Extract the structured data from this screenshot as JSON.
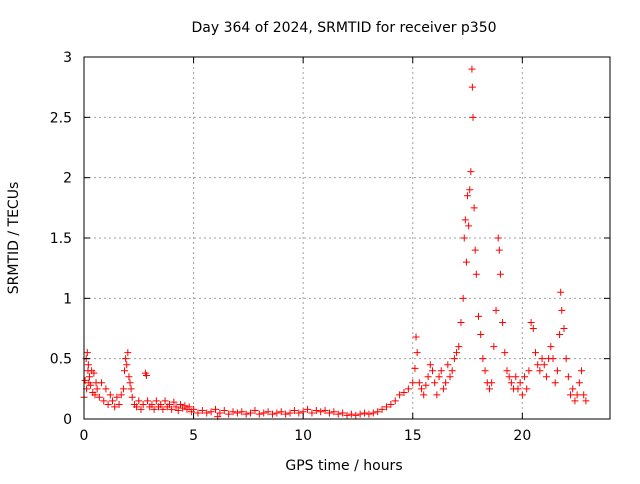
{
  "chart_data": {
    "type": "scatter",
    "title": "Day 364 of 2024, SRMTID for receiver p350",
    "xlabel": "GPS time / hours",
    "ylabel": "SRMTID / TECUs",
    "xlim": [
      0,
      24
    ],
    "ylim": [
      0,
      3
    ],
    "x_ticks": [
      0,
      5,
      10,
      15,
      20
    ],
    "x_tick_labels": [
      "0",
      "5",
      "10",
      "15",
      "20"
    ],
    "y_ticks": [
      0,
      0.5,
      1,
      1.5,
      2,
      2.5,
      3
    ],
    "y_tick_labels": [
      "0",
      "0.5",
      "1",
      "1.5",
      "2",
      "2.5",
      "3"
    ],
    "grid": true,
    "marker": "+",
    "series": [
      {
        "name": "SRMTID",
        "color": "#ff0000",
        "points": [
          [
            0.0,
            0.18
          ],
          [
            0.05,
            0.32
          ],
          [
            0.1,
            0.5
          ],
          [
            0.12,
            0.25
          ],
          [
            0.15,
            0.55
          ],
          [
            0.18,
            0.4
          ],
          [
            0.2,
            0.45
          ],
          [
            0.22,
            0.3
          ],
          [
            0.25,
            0.35
          ],
          [
            0.3,
            0.28
          ],
          [
            0.35,
            0.4
          ],
          [
            0.4,
            0.22
          ],
          [
            0.45,
            0.38
          ],
          [
            0.5,
            0.2
          ],
          [
            0.55,
            0.3
          ],
          [
            0.6,
            0.25
          ],
          [
            0.7,
            0.18
          ],
          [
            0.8,
            0.3
          ],
          [
            0.9,
            0.15
          ],
          [
            1.0,
            0.25
          ],
          [
            1.1,
            0.12
          ],
          [
            1.2,
            0.2
          ],
          [
            1.3,
            0.15
          ],
          [
            1.4,
            0.1
          ],
          [
            1.5,
            0.18
          ],
          [
            1.6,
            0.12
          ],
          [
            1.7,
            0.2
          ],
          [
            1.8,
            0.25
          ],
          [
            1.85,
            0.4
          ],
          [
            1.9,
            0.5
          ],
          [
            1.95,
            0.45
          ],
          [
            2.0,
            0.55
          ],
          [
            2.05,
            0.35
          ],
          [
            2.1,
            0.3
          ],
          [
            2.15,
            0.25
          ],
          [
            2.2,
            0.18
          ],
          [
            2.3,
            0.12
          ],
          [
            2.4,
            0.1
          ],
          [
            2.5,
            0.15
          ],
          [
            2.6,
            0.08
          ],
          [
            2.7,
            0.12
          ],
          [
            2.8,
            0.38
          ],
          [
            2.85,
            0.36
          ],
          [
            2.9,
            0.15
          ],
          [
            3.0,
            0.1
          ],
          [
            3.1,
            0.12
          ],
          [
            3.2,
            0.08
          ],
          [
            3.3,
            0.15
          ],
          [
            3.4,
            0.1
          ],
          [
            3.5,
            0.12
          ],
          [
            3.6,
            0.08
          ],
          [
            3.7,
            0.15
          ],
          [
            3.8,
            0.1
          ],
          [
            3.9,
            0.12
          ],
          [
            4.0,
            0.08
          ],
          [
            4.1,
            0.14
          ],
          [
            4.2,
            0.1
          ],
          [
            4.3,
            0.07
          ],
          [
            4.4,
            0.12
          ],
          [
            4.5,
            0.09
          ],
          [
            4.6,
            0.11
          ],
          [
            4.7,
            0.08
          ],
          [
            4.8,
            0.1
          ],
          [
            4.9,
            0.06
          ],
          [
            5.0,
            0.08
          ],
          [
            5.2,
            0.05
          ],
          [
            5.4,
            0.07
          ],
          [
            5.6,
            0.05
          ],
          [
            5.8,
            0.06
          ],
          [
            6.0,
            0.08
          ],
          [
            6.1,
            0.02
          ],
          [
            6.2,
            0.05
          ],
          [
            6.4,
            0.07
          ],
          [
            6.6,
            0.04
          ],
          [
            6.8,
            0.06
          ],
          [
            7.0,
            0.05
          ],
          [
            7.2,
            0.06
          ],
          [
            7.4,
            0.04
          ],
          [
            7.6,
            0.05
          ],
          [
            7.8,
            0.07
          ],
          [
            8.0,
            0.04
          ],
          [
            8.2,
            0.05
          ],
          [
            8.4,
            0.06
          ],
          [
            8.6,
            0.04
          ],
          [
            8.8,
            0.05
          ],
          [
            9.0,
            0.06
          ],
          [
            9.2,
            0.04
          ],
          [
            9.4,
            0.05
          ],
          [
            9.6,
            0.07
          ],
          [
            9.8,
            0.05
          ],
          [
            10.0,
            0.06
          ],
          [
            10.2,
            0.08
          ],
          [
            10.4,
            0.05
          ],
          [
            10.6,
            0.07
          ],
          [
            10.8,
            0.06
          ],
          [
            11.0,
            0.07
          ],
          [
            11.2,
            0.05
          ],
          [
            11.4,
            0.06
          ],
          [
            11.6,
            0.04
          ],
          [
            11.8,
            0.05
          ],
          [
            12.0,
            0.03
          ],
          [
            12.2,
            0.04
          ],
          [
            12.4,
            0.03
          ],
          [
            12.6,
            0.04
          ],
          [
            12.8,
            0.05
          ],
          [
            13.0,
            0.04
          ],
          [
            13.2,
            0.05
          ],
          [
            13.4,
            0.06
          ],
          [
            13.6,
            0.08
          ],
          [
            13.8,
            0.1
          ],
          [
            14.0,
            0.12
          ],
          [
            14.2,
            0.15
          ],
          [
            14.4,
            0.2
          ],
          [
            14.6,
            0.22
          ],
          [
            14.8,
            0.25
          ],
          [
            15.0,
            0.3
          ],
          [
            15.1,
            0.42
          ],
          [
            15.15,
            0.68
          ],
          [
            15.2,
            0.55
          ],
          [
            15.3,
            0.3
          ],
          [
            15.4,
            0.25
          ],
          [
            15.5,
            0.2
          ],
          [
            15.6,
            0.28
          ],
          [
            15.7,
            0.35
          ],
          [
            15.8,
            0.45
          ],
          [
            15.9,
            0.4
          ],
          [
            16.0,
            0.3
          ],
          [
            16.1,
            0.2
          ],
          [
            16.2,
            0.35
          ],
          [
            16.3,
            0.4
          ],
          [
            16.4,
            0.25
          ],
          [
            16.5,
            0.3
          ],
          [
            16.6,
            0.45
          ],
          [
            16.7,
            0.35
          ],
          [
            16.8,
            0.4
          ],
          [
            16.9,
            0.5
          ],
          [
            17.0,
            0.55
          ],
          [
            17.1,
            0.6
          ],
          [
            17.2,
            0.8
          ],
          [
            17.3,
            1.0
          ],
          [
            17.35,
            1.5
          ],
          [
            17.4,
            1.65
          ],
          [
            17.45,
            1.3
          ],
          [
            17.5,
            1.85
          ],
          [
            17.55,
            1.6
          ],
          [
            17.6,
            1.9
          ],
          [
            17.65,
            2.05
          ],
          [
            17.7,
            2.9
          ],
          [
            17.72,
            2.75
          ],
          [
            17.75,
            2.5
          ],
          [
            17.8,
            1.75
          ],
          [
            17.85,
            1.4
          ],
          [
            17.9,
            1.2
          ],
          [
            18.0,
            0.85
          ],
          [
            18.1,
            0.7
          ],
          [
            18.2,
            0.5
          ],
          [
            18.3,
            0.4
          ],
          [
            18.4,
            0.3
          ],
          [
            18.5,
            0.25
          ],
          [
            18.6,
            0.3
          ],
          [
            18.7,
            0.6
          ],
          [
            18.8,
            0.9
          ],
          [
            18.9,
            1.5
          ],
          [
            18.95,
            1.4
          ],
          [
            19.0,
            1.2
          ],
          [
            19.1,
            0.8
          ],
          [
            19.2,
            0.55
          ],
          [
            19.3,
            0.4
          ],
          [
            19.4,
            0.35
          ],
          [
            19.5,
            0.3
          ],
          [
            19.6,
            0.25
          ],
          [
            19.7,
            0.35
          ],
          [
            19.8,
            0.25
          ],
          [
            19.9,
            0.3
          ],
          [
            20.0,
            0.2
          ],
          [
            20.1,
            0.35
          ],
          [
            20.2,
            0.25
          ],
          [
            20.3,
            0.4
          ],
          [
            20.4,
            0.8
          ],
          [
            20.5,
            0.75
          ],
          [
            20.6,
            0.55
          ],
          [
            20.7,
            0.45
          ],
          [
            20.8,
            0.4
          ],
          [
            20.9,
            0.5
          ],
          [
            21.0,
            0.45
          ],
          [
            21.1,
            0.35
          ],
          [
            21.2,
            0.5
          ],
          [
            21.3,
            0.6
          ],
          [
            21.4,
            0.5
          ],
          [
            21.5,
            0.3
          ],
          [
            21.6,
            0.4
          ],
          [
            21.7,
            0.7
          ],
          [
            21.75,
            1.05
          ],
          [
            21.8,
            0.9
          ],
          [
            21.9,
            0.75
          ],
          [
            22.0,
            0.5
          ],
          [
            22.1,
            0.35
          ],
          [
            22.2,
            0.2
          ],
          [
            22.3,
            0.25
          ],
          [
            22.4,
            0.15
          ],
          [
            22.5,
            0.2
          ],
          [
            22.6,
            0.3
          ],
          [
            22.7,
            0.4
          ],
          [
            22.8,
            0.2
          ],
          [
            22.9,
            0.15
          ]
        ]
      }
    ]
  }
}
